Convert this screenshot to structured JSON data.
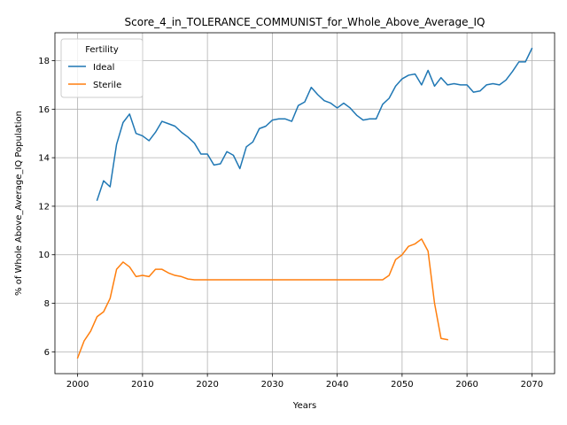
{
  "chart_data": {
    "type": "line",
    "title": "Score_4_in_TOLERANCE_COMMUNIST_for_Whole_Above_Average_IQ",
    "xlabel": "Years",
    "ylabel": "% of Whole Above_Average_IQ Population",
    "xlim": [
      1996.5,
      2073.5
    ],
    "ylim": [
      5.1,
      19.15
    ],
    "xticks": [
      2000,
      2010,
      2020,
      2030,
      2040,
      2050,
      2060,
      2070
    ],
    "yticks": [
      6,
      8,
      10,
      12,
      14,
      16,
      18
    ],
    "grid": true,
    "legend": {
      "title": "Fertility",
      "placement": "upper-left"
    },
    "series": [
      {
        "name": "Ideal",
        "color": "#1f77b4",
        "x": [
          2003,
          2004,
          2005,
          2006,
          2007,
          2008,
          2009,
          2010,
          2011,
          2012,
          2013,
          2014,
          2015,
          2016,
          2017,
          2018,
          2019,
          2020,
          2021,
          2022,
          2023,
          2024,
          2025,
          2026,
          2027,
          2028,
          2029,
          2030,
          2031,
          2032,
          2033,
          2034,
          2035,
          2036,
          2037,
          2038,
          2039,
          2040,
          2041,
          2042,
          2043,
          2044,
          2045,
          2046,
          2047,
          2048,
          2049,
          2050,
          2051,
          2052,
          2053,
          2054,
          2055,
          2056,
          2057,
          2058,
          2059,
          2060,
          2061,
          2062,
          2063,
          2064,
          2065,
          2066,
          2067,
          2068,
          2069,
          2070
        ],
        "values": [
          12.25,
          13.05,
          12.8,
          14.55,
          15.45,
          15.8,
          15.0,
          14.9,
          14.7,
          15.05,
          15.5,
          15.4,
          15.3,
          15.05,
          14.85,
          14.6,
          14.15,
          14.15,
          13.7,
          13.75,
          14.25,
          14.1,
          13.55,
          14.45,
          14.65,
          15.2,
          15.3,
          15.55,
          15.6,
          15.6,
          15.5,
          16.15,
          16.3,
          16.9,
          16.6,
          16.35,
          16.25,
          16.05,
          16.25,
          16.05,
          15.75,
          15.55,
          15.6,
          15.6,
          16.2,
          16.45,
          16.95,
          17.25,
          17.4,
          17.45,
          17.0,
          17.6,
          16.95,
          17.3,
          17.0,
          17.05,
          17.0,
          17.0,
          16.7,
          16.75,
          17.0,
          17.05,
          17.0,
          17.2,
          17.55,
          17.95,
          17.95,
          18.5
        ]
      },
      {
        "name": "Sterile",
        "color": "#ff7f0e",
        "x": [
          2000,
          2001,
          2002,
          2003,
          2004,
          2005,
          2006,
          2007,
          2008,
          2009,
          2010,
          2011,
          2012,
          2013,
          2014,
          2015,
          2016,
          2017,
          2018,
          2019,
          2020,
          2021,
          2022,
          2023,
          2024,
          2025,
          2026,
          2027,
          2028,
          2029,
          2030,
          2031,
          2032,
          2033,
          2034,
          2035,
          2036,
          2037,
          2038,
          2039,
          2040,
          2041,
          2042,
          2043,
          2044,
          2045,
          2046,
          2047,
          2048,
          2049,
          2050,
          2051,
          2052,
          2053,
          2054,
          2055,
          2056,
          2057
        ],
        "values": [
          5.75,
          6.45,
          6.85,
          7.45,
          7.65,
          8.2,
          9.4,
          9.7,
          9.5,
          9.1,
          9.15,
          9.1,
          9.4,
          9.4,
          9.25,
          9.15,
          9.1,
          9.0,
          8.97,
          8.97,
          8.97,
          8.97,
          8.97,
          8.97,
          8.97,
          8.97,
          8.97,
          8.97,
          8.97,
          8.97,
          8.97,
          8.97,
          8.97,
          8.97,
          8.97,
          8.97,
          8.97,
          8.97,
          8.97,
          8.97,
          8.97,
          8.97,
          8.97,
          8.97,
          8.97,
          8.97,
          8.97,
          8.97,
          9.15,
          9.8,
          10.0,
          10.35,
          10.45,
          10.65,
          10.15,
          8.0,
          6.55,
          6.5
        ]
      }
    ]
  }
}
